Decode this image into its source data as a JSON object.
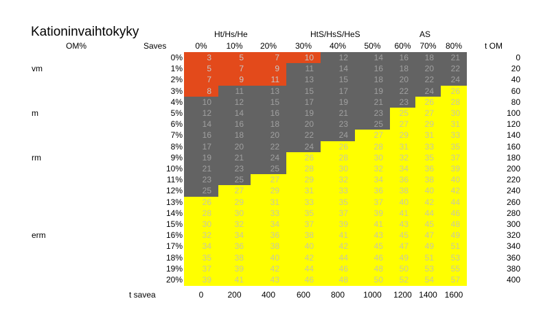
{
  "chart_data": {
    "type": "heatmap",
    "title": "Kationinvaihtokyky",
    "col_header_left": "OM%",
    "row_header": "Saves",
    "right_header": "t OM",
    "bottom_header": "t savea",
    "group_labels": [
      "Ht/Hs/He",
      "HtS/HsS/HeS",
      "AS"
    ],
    "columns": [
      "0%",
      "10%",
      "20%",
      "30%",
      "40%",
      "50%",
      "60%",
      "70%",
      "80%"
    ],
    "rows": [
      "0%",
      "1%",
      "2%",
      "3%",
      "4%",
      "5%",
      "6%",
      "7%",
      "8%",
      "9%",
      "10%",
      "11%",
      "12%",
      "13%",
      "14%",
      "15%",
      "16%",
      "17%",
      "18%",
      "19%",
      "20%"
    ],
    "right_values": [
      "0",
      "20",
      "40",
      "60",
      "80",
      "100",
      "120",
      "140",
      "160",
      "180",
      "200",
      "220",
      "240",
      "260",
      "280",
      "300",
      "320",
      "340",
      "360",
      "380",
      "400"
    ],
    "bottom_values": [
      "0",
      "200",
      "400",
      "600",
      "800",
      "1000",
      "1200",
      "1400",
      "1600"
    ],
    "class_labels": [
      {
        "row": 1,
        "label": "vm"
      },
      {
        "row": 5,
        "label": "m"
      },
      {
        "row": 9,
        "label": "rm"
      },
      {
        "row": 16,
        "label": "erm"
      }
    ],
    "values": [
      [
        3,
        5,
        7,
        10,
        12,
        14,
        16,
        18,
        21
      ],
      [
        5,
        7,
        9,
        11,
        14,
        16,
        18,
        20,
        22
      ],
      [
        7,
        9,
        11,
        13,
        15,
        18,
        20,
        22,
        24
      ],
      [
        8,
        11,
        13,
        15,
        17,
        19,
        22,
        24,
        26
      ],
      [
        10,
        12,
        15,
        17,
        19,
        21,
        23,
        26,
        28
      ],
      [
        12,
        14,
        16,
        19,
        21,
        23,
        25,
        27,
        30
      ],
      [
        14,
        16,
        18,
        20,
        23,
        25,
        27,
        29,
        31
      ],
      [
        16,
        18,
        20,
        22,
        24,
        27,
        29,
        31,
        33
      ],
      [
        17,
        20,
        22,
        24,
        26,
        28,
        31,
        33,
        35
      ],
      [
        19,
        21,
        24,
        26,
        28,
        30,
        32,
        35,
        37
      ],
      [
        21,
        23,
        25,
        28,
        30,
        32,
        34,
        36,
        39
      ],
      [
        23,
        25,
        27,
        29,
        32,
        34,
        36,
        38,
        40
      ],
      [
        25,
        27,
        29,
        31,
        33,
        36,
        38,
        40,
        42
      ],
      [
        26,
        29,
        31,
        33,
        35,
        37,
        40,
        42,
        44
      ],
      [
        28,
        30,
        33,
        35,
        37,
        39,
        41,
        44,
        46
      ],
      [
        30,
        32,
        34,
        37,
        39,
        41,
        43,
        45,
        48
      ],
      [
        32,
        34,
        36,
        38,
        41,
        43,
        45,
        47,
        49
      ],
      [
        34,
        36,
        38,
        40,
        42,
        45,
        47,
        49,
        51
      ],
      [
        35,
        38,
        40,
        42,
        44,
        46,
        49,
        51,
        53
      ],
      [
        37,
        39,
        42,
        44,
        46,
        48,
        50,
        53,
        55
      ],
      [
        39,
        41,
        43,
        46,
        48,
        50,
        52,
        54,
        57
      ]
    ],
    "color_scale": [
      {
        "max": 10,
        "color": "#e34a1b",
        "text": "#c8c8c8"
      },
      {
        "max": 25,
        "color": "#636363",
        "text": "#a0a0a0"
      },
      {
        "max": 999,
        "color": "#ffff00",
        "text": "#c8c8a0"
      }
    ],
    "orange_cells_by_row": [
      3,
      3,
      3,
      1
    ]
  }
}
